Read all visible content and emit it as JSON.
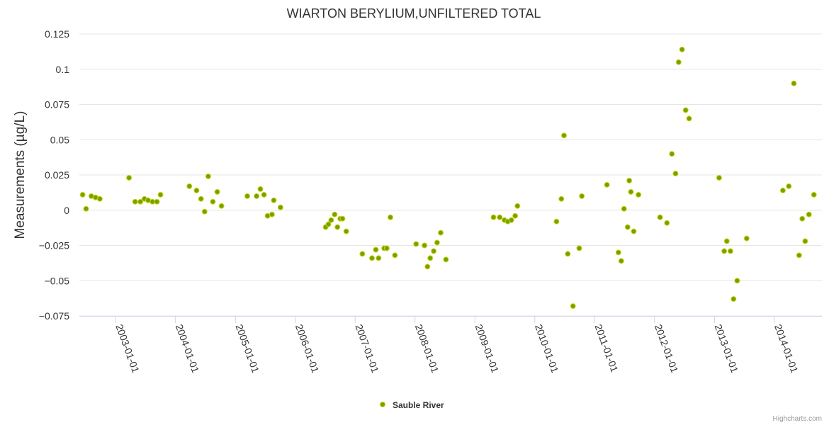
{
  "chart_data": {
    "type": "scatter",
    "title": "WIARTON BERYLIUM,UNFILTERED TOTAL",
    "ylabel": "Measurements (µg/L)",
    "xlabel": "",
    "ylim": [
      -0.075,
      0.125
    ],
    "yticks": [
      {
        "value": 0.125,
        "label": "0.125"
      },
      {
        "value": 0.1,
        "label": "0.1"
      },
      {
        "value": 0.075,
        "label": "0.075"
      },
      {
        "value": 0.05,
        "label": "0.05"
      },
      {
        "value": 0.025,
        "label": "0.025"
      },
      {
        "value": 0,
        "label": "0"
      },
      {
        "value": -0.025,
        "label": "−0.025"
      },
      {
        "value": -0.05,
        "label": "−0.05"
      },
      {
        "value": -0.075,
        "label": "−0.075"
      }
    ],
    "xlim": [
      "2002-05-25",
      "2014-10-18"
    ],
    "xticks": [
      "2003-01-01",
      "2004-01-01",
      "2005-01-01",
      "2006-01-01",
      "2007-01-01",
      "2008-01-01",
      "2009-01-01",
      "2010-01-01",
      "2011-01-01",
      "2012-01-01",
      "2013-01-01",
      "2014-01-01"
    ],
    "grid": true,
    "legend": "bottom-center",
    "series": [
      {
        "name": "Sauble River",
        "color": "#66aa00",
        "border": "#e5ca1a",
        "points": [
          {
            "x": "2002-06-14",
            "y": 0.011
          },
          {
            "x": "2002-07-05",
            "y": 0.001
          },
          {
            "x": "2002-08-06",
            "y": 0.01
          },
          {
            "x": "2002-09-01",
            "y": 0.009
          },
          {
            "x": "2002-09-27",
            "y": 0.008
          },
          {
            "x": "2003-03-24",
            "y": 0.023
          },
          {
            "x": "2003-04-30",
            "y": 0.006
          },
          {
            "x": "2003-06-01",
            "y": 0.006
          },
          {
            "x": "2003-06-26",
            "y": 0.008
          },
          {
            "x": "2003-07-18",
            "y": 0.007
          },
          {
            "x": "2003-08-14",
            "y": 0.006
          },
          {
            "x": "2003-09-10",
            "y": 0.006
          },
          {
            "x": "2003-10-02",
            "y": 0.011
          },
          {
            "x": "2004-03-26",
            "y": 0.017
          },
          {
            "x": "2004-05-09",
            "y": 0.014
          },
          {
            "x": "2004-06-05",
            "y": 0.008
          },
          {
            "x": "2004-06-27",
            "y": -0.001
          },
          {
            "x": "2004-07-19",
            "y": 0.024
          },
          {
            "x": "2004-08-16",
            "y": 0.006
          },
          {
            "x": "2004-09-12",
            "y": 0.013
          },
          {
            "x": "2004-10-08",
            "y": 0.003
          },
          {
            "x": "2005-03-14",
            "y": 0.01
          },
          {
            "x": "2005-05-10",
            "y": 0.01
          },
          {
            "x": "2005-06-02",
            "y": 0.015
          },
          {
            "x": "2005-06-24",
            "y": 0.011
          },
          {
            "x": "2005-07-16",
            "y": -0.004
          },
          {
            "x": "2005-08-12",
            "y": -0.003
          },
          {
            "x": "2005-08-23",
            "y": 0.007
          },
          {
            "x": "2005-10-03",
            "y": 0.002
          },
          {
            "x": "2006-07-05",
            "y": -0.012
          },
          {
            "x": "2006-07-22",
            "y": -0.01
          },
          {
            "x": "2006-08-08",
            "y": -0.007
          },
          {
            "x": "2006-08-29",
            "y": -0.003
          },
          {
            "x": "2006-09-15",
            "y": -0.012
          },
          {
            "x": "2006-10-02",
            "y": -0.006
          },
          {
            "x": "2006-10-16",
            "y": -0.006
          },
          {
            "x": "2006-11-08",
            "y": -0.015
          },
          {
            "x": "2007-02-14",
            "y": -0.031
          },
          {
            "x": "2007-04-14",
            "y": -0.034
          },
          {
            "x": "2007-05-07",
            "y": -0.028
          },
          {
            "x": "2007-05-24",
            "y": -0.034
          },
          {
            "x": "2007-06-27",
            "y": -0.027
          },
          {
            "x": "2007-07-13",
            "y": -0.027
          },
          {
            "x": "2007-08-04",
            "y": -0.005
          },
          {
            "x": "2007-09-01",
            "y": -0.032
          },
          {
            "x": "2008-01-08",
            "y": -0.024
          },
          {
            "x": "2008-02-28",
            "y": -0.025
          },
          {
            "x": "2008-03-17",
            "y": -0.04
          },
          {
            "x": "2008-04-03",
            "y": -0.034
          },
          {
            "x": "2008-04-24",
            "y": -0.029
          },
          {
            "x": "2008-05-15",
            "y": -0.023
          },
          {
            "x": "2008-06-06",
            "y": -0.016
          },
          {
            "x": "2008-07-08",
            "y": -0.035
          },
          {
            "x": "2009-04-24",
            "y": -0.005
          },
          {
            "x": "2009-06-01",
            "y": -0.005
          },
          {
            "x": "2009-06-30",
            "y": -0.007
          },
          {
            "x": "2009-07-20",
            "y": -0.008
          },
          {
            "x": "2009-08-11",
            "y": -0.007
          },
          {
            "x": "2009-09-03",
            "y": -0.004
          },
          {
            "x": "2009-09-17",
            "y": 0.003
          },
          {
            "x": "2010-05-13",
            "y": -0.008
          },
          {
            "x": "2010-06-12",
            "y": 0.008
          },
          {
            "x": "2010-06-28",
            "y": 0.053
          },
          {
            "x": "2010-07-21",
            "y": -0.031
          },
          {
            "x": "2010-08-22",
            "y": -0.068
          },
          {
            "x": "2010-09-29",
            "y": -0.027
          },
          {
            "x": "2010-10-15",
            "y": 0.01
          },
          {
            "x": "2011-03-17",
            "y": 0.018
          },
          {
            "x": "2011-05-26",
            "y": -0.03
          },
          {
            "x": "2011-06-12",
            "y": -0.036
          },
          {
            "x": "2011-06-29",
            "y": 0.001
          },
          {
            "x": "2011-07-21",
            "y": -0.012
          },
          {
            "x": "2011-07-31",
            "y": 0.021
          },
          {
            "x": "2011-08-10",
            "y": 0.013
          },
          {
            "x": "2011-08-27",
            "y": -0.015
          },
          {
            "x": "2011-09-25",
            "y": 0.011
          },
          {
            "x": "2012-02-04",
            "y": -0.005
          },
          {
            "x": "2012-03-17",
            "y": -0.009
          },
          {
            "x": "2012-04-16",
            "y": 0.04
          },
          {
            "x": "2012-05-08",
            "y": 0.026
          },
          {
            "x": "2012-05-27",
            "y": 0.105
          },
          {
            "x": "2012-06-17",
            "y": 0.114
          },
          {
            "x": "2012-07-09",
            "y": 0.071
          },
          {
            "x": "2012-07-30",
            "y": 0.065
          },
          {
            "x": "2013-01-29",
            "y": 0.023
          },
          {
            "x": "2013-03-01",
            "y": -0.029
          },
          {
            "x": "2013-03-17",
            "y": -0.022
          },
          {
            "x": "2013-04-08",
            "y": -0.029
          },
          {
            "x": "2013-04-27",
            "y": -0.063
          },
          {
            "x": "2013-05-19",
            "y": -0.05
          },
          {
            "x": "2013-07-16",
            "y": -0.02
          },
          {
            "x": "2014-02-22",
            "y": 0.014
          },
          {
            "x": "2014-03-30",
            "y": 0.017
          },
          {
            "x": "2014-04-30",
            "y": 0.09
          },
          {
            "x": "2014-06-01",
            "y": -0.032
          },
          {
            "x": "2014-06-20",
            "y": -0.006
          },
          {
            "x": "2014-07-08",
            "y": -0.022
          },
          {
            "x": "2014-07-31",
            "y": -0.003
          },
          {
            "x": "2014-08-30",
            "y": 0.011
          }
        ]
      }
    ]
  },
  "credits": "Highcharts.com"
}
